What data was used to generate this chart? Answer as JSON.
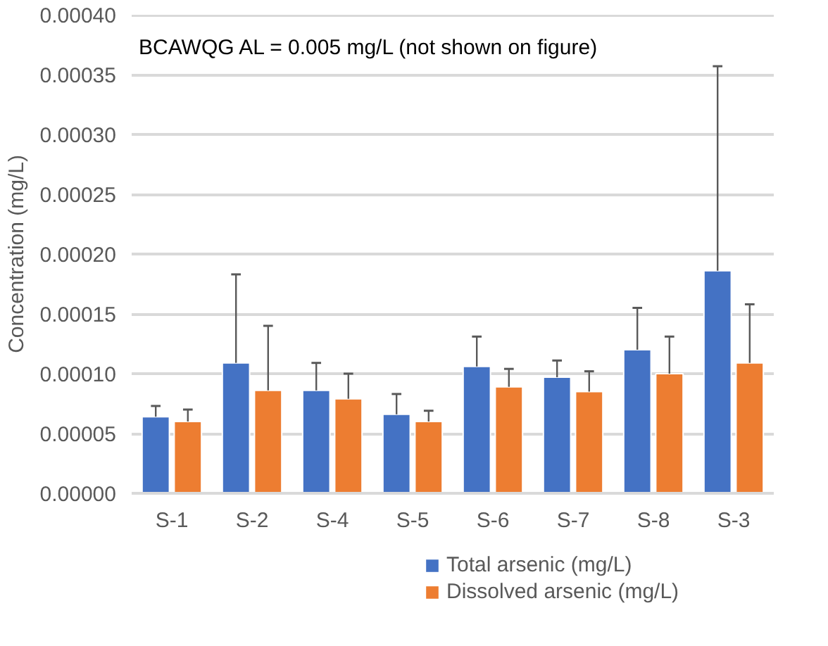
{
  "chart_data": {
    "type": "bar",
    "ylabel": "Concentration (mg/L)",
    "annotations": [
      "BCAWQG AL = 0.005 mg/L (not shown on figure)"
    ],
    "categories": [
      "S-1",
      "S-2",
      "S-4",
      "S-5",
      "S-6",
      "S-7",
      "S-8",
      "S-3"
    ],
    "series": [
      {
        "name": "Total arsenic (mg/L)",
        "color": "#4472c4",
        "values": [
          6.4e-05,
          0.000109,
          8.6e-05,
          6.6e-05,
          0.000106,
          9.7e-05,
          0.00012,
          0.000186
        ],
        "errors": [
          [
            6.4e-05,
            7.3e-05
          ],
          [
            0.000109,
            0.000183
          ],
          [
            8.6e-05,
            0.000109
          ],
          [
            6.6e-05,
            8.3e-05
          ],
          [
            0.000106,
            0.000131
          ],
          [
            9.7e-05,
            0.000111
          ],
          [
            0.00012,
            0.000155
          ],
          [
            0.000186,
            0.000357
          ]
        ]
      },
      {
        "name": "Dissolved arsenic (mg/L)",
        "color": "#ed7d31",
        "values": [
          6e-05,
          8.6e-05,
          7.9e-05,
          6e-05,
          8.9e-05,
          8.5e-05,
          0.0001,
          0.000109
        ],
        "errors": [
          [
            6e-05,
            7e-05
          ],
          [
            8.6e-05,
            0.00014
          ],
          [
            7.9e-05,
            0.0001
          ],
          [
            6e-05,
            6.9e-05
          ],
          [
            8.9e-05,
            0.000104
          ],
          [
            8.5e-05,
            0.000102
          ],
          [
            0.0001,
            0.000131
          ],
          [
            0.000109,
            0.000158
          ]
        ]
      }
    ],
    "ylim": [
      0,
      0.0004
    ],
    "yticks": [
      {
        "value": 0,
        "label": "0.00000"
      },
      {
        "value": 5e-05,
        "label": "0.00005"
      },
      {
        "value": 0.0001,
        "label": "0.00010"
      },
      {
        "value": 0.00015,
        "label": "0.00015"
      },
      {
        "value": 0.0002,
        "label": "0.00020"
      },
      {
        "value": 0.00025,
        "label": "0.00025"
      },
      {
        "value": 0.0003,
        "label": "0.00030"
      },
      {
        "value": 0.00035,
        "label": "0.00035"
      },
      {
        "value": 0.0004,
        "label": "0.00040"
      }
    ],
    "grid": "y",
    "legend": "bottom"
  }
}
